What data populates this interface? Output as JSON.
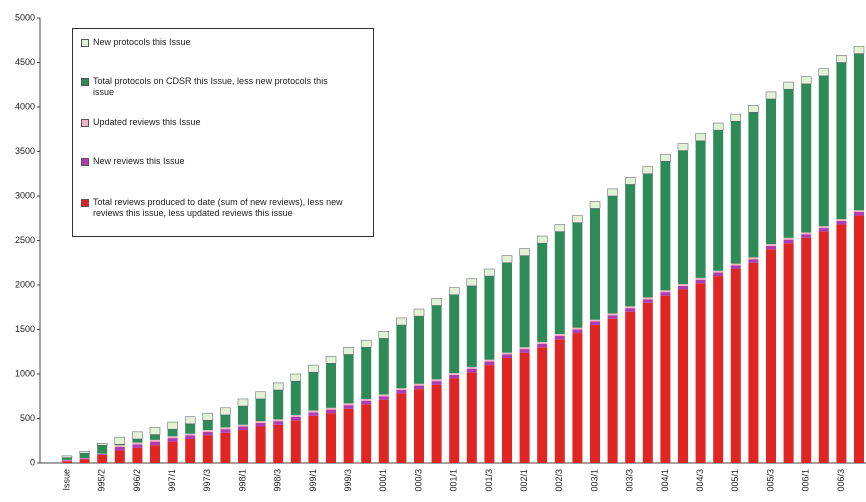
{
  "chart_data": {
    "type": "stacked-bar",
    "categories": [
      "Issue",
      null,
      "995/2",
      null,
      "996/2",
      null,
      "997/1",
      null,
      "997/3",
      null,
      "998/1",
      null,
      "998/3",
      null,
      "999/1",
      null,
      "999/3",
      null,
      "000/1",
      null,
      "000/3",
      null,
      "001/1",
      null,
      "001/3",
      null,
      "002/1",
      null,
      "002/3",
      null,
      "003/1",
      null,
      "003/3",
      null,
      "004/1",
      null,
      "004/3",
      null,
      "005/1",
      null,
      "005/3",
      null,
      "006/1",
      null,
      "006/3",
      null
    ],
    "series": [
      {
        "name": "Total reviews produced to date (sum of new reviews), less new reviews this issue, less updated reviews this issue",
        "color": "#e02525",
        "values": [
          20,
          40,
          90,
          140,
          170,
          200,
          240,
          270,
          310,
          340,
          370,
          410,
          430,
          480,
          530,
          560,
          610,
          660,
          710,
          780,
          830,
          880,
          950,
          1020,
          1100,
          1180,
          1240,
          1300,
          1390,
          1460,
          1550,
          1620,
          1700,
          1800,
          1880,
          1950,
          2020,
          2100,
          2180,
          2250,
          2400,
          2470,
          2530,
          2600,
          2680,
          2780
        ]
      },
      {
        "name": "New reviews this Issue",
        "color": "#b03cb0",
        "values": [
          10,
          10,
          10,
          40,
          40,
          40,
          40,
          40,
          40,
          40,
          40,
          40,
          40,
          40,
          40,
          40,
          40,
          40,
          40,
          40,
          40,
          40,
          40,
          40,
          40,
          40,
          40,
          40,
          40,
          40,
          40,
          40,
          40,
          40,
          40,
          40,
          40,
          40,
          40,
          40,
          40,
          40,
          40,
          40,
          40,
          40
        ]
      },
      {
        "name": "Updated reviews this Issue",
        "color": "#f2b4c4",
        "values": [
          5,
          5,
          5,
          20,
          20,
          20,
          20,
          20,
          20,
          20,
          20,
          20,
          20,
          20,
          20,
          20,
          20,
          20,
          20,
          20,
          20,
          20,
          20,
          20,
          20,
          20,
          20,
          20,
          20,
          20,
          20,
          20,
          20,
          20,
          20,
          20,
          20,
          20,
          20,
          20,
          20,
          20,
          20,
          20,
          20,
          20
        ]
      },
      {
        "name": "Total protocols on CDSR this Issue, less new protocols this issue",
        "color": "#2e8b57",
        "values": [
          25,
          55,
          95,
          10,
          40,
          60,
          80,
          110,
          110,
          140,
          210,
          250,
          330,
          380,
          430,
          500,
          550,
          580,
          630,
          710,
          760,
          830,
          880,
          910,
          940,
          1010,
          1030,
          1110,
          1150,
          1180,
          1250,
          1320,
          1370,
          1390,
          1450,
          1500,
          1540,
          1580,
          1600,
          1630,
          1630,
          1670,
          1670,
          1690,
          1760,
          1760
        ]
      },
      {
        "name": "New protocols this Issue",
        "color": "#e3f2d6",
        "values": [
          20,
          20,
          20,
          80,
          80,
          80,
          80,
          80,
          80,
          80,
          80,
          80,
          80,
          80,
          80,
          80,
          80,
          80,
          80,
          80,
          80,
          80,
          80,
          80,
          80,
          80,
          80,
          80,
          80,
          80,
          80,
          80,
          80,
          80,
          80,
          80,
          80,
          80,
          80,
          80,
          80,
          80,
          80,
          80,
          80,
          80
        ]
      }
    ],
    "ylim": [
      0,
      5000
    ],
    "yticks": [
      0,
      500,
      1000,
      1500,
      2000,
      2500,
      3000,
      3500,
      4000,
      4500,
      5000
    ],
    "grid": false
  }
}
